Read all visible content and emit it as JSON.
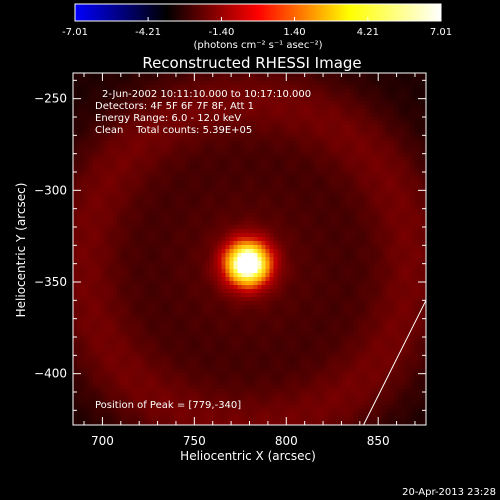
{
  "colorbar": {
    "tick_labels": [
      "-7.01",
      "-4.21",
      "-1.40",
      "1.40",
      "4.21",
      "7.01"
    ],
    "range": [
      -7.01,
      7.01
    ],
    "unit_label": "(photons cm⁻² s⁻¹ asec⁻²)",
    "colors": [
      "#0000ff",
      "#000000",
      "#ff0000",
      "#ffff00",
      "#ffffff"
    ]
  },
  "chart_data": {
    "type": "heatmap",
    "title": "Reconstructed RHESSI Image",
    "xlabel": "Heliocentric X (arcsec)",
    "ylabel": "Heliocentric Y (arcsec)",
    "xlim": [
      684,
      876
    ],
    "ylim": [
      -428,
      -236
    ],
    "x_ticks": [
      700,
      750,
      800,
      850
    ],
    "y_ticks": [
      -250,
      -300,
      -350,
      -400
    ],
    "annotations": [
      "2-Jun-2002 10:11:10.000 to 10:17:10.000",
      "Detectors: 4F 5F 6F 7F 8F, Att 1",
      "Energy Range: 6.0 - 12.0 keV",
      "Clean    Total counts: 5.39E+05"
    ],
    "peak_label": "Position of Peak = [779,-340]",
    "peak": {
      "x": 779,
      "y": -340,
      "sigma_arcsec": 9
    },
    "ring": {
      "center_x": 779,
      "center_y": -340,
      "radius_arcsec": 90
    },
    "limb_line": {
      "x": [
        842,
        876
      ],
      "y": [
        -428,
        -360
      ]
    }
  },
  "footer": {
    "timestamp": "20-Apr-2013 23:28"
  }
}
